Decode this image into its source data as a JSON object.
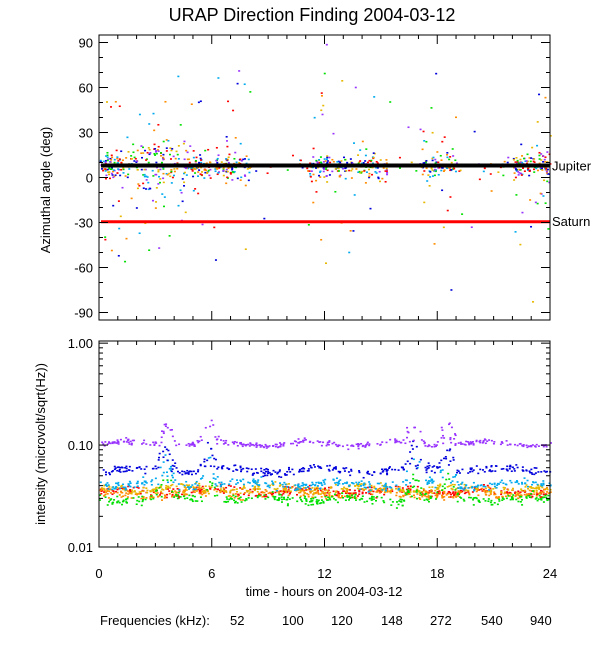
{
  "chart_data": [
    {
      "type": "scatter",
      "title": "URAP Direction Finding  2004-03-12",
      "ylabel": "Azimuthal angle (deg)",
      "xlim": [
        0,
        24
      ],
      "ylim": [
        -95,
        95
      ],
      "yticks": [
        90,
        60,
        30,
        0,
        -30,
        -60,
        -90
      ],
      "ytick_labels": [
        "90",
        "60",
        "30",
        "0",
        "-30",
        "-60",
        "-90"
      ],
      "reference_lines": [
        {
          "name": "Jupiter",
          "label": "Jupiter",
          "color": "#000000",
          "value": 8
        },
        {
          "name": "Saturn",
          "label": "Saturn",
          "color": "#ff0000",
          "value": -29.5
        }
      ],
      "active_bursts_hours": [
        [
          0,
          8
        ],
        [
          11,
          15.3
        ],
        [
          17,
          19
        ],
        [
          22,
          24
        ]
      ],
      "marker": "small dots, colored by frequency"
    },
    {
      "type": "scatter",
      "ylabel": "intensity (microvolt/sqrt(Hz))",
      "yscale": "log",
      "xlim": [
        0,
        24
      ],
      "ylim": [
        0.01,
        1.05
      ],
      "yticks": [
        1.0,
        0.1,
        0.01
      ],
      "ytick_labels": [
        "1.00",
        "0.10",
        "0.01"
      ],
      "xlabel": "time - hours on 2004-03-12",
      "xticks": [
        0,
        6,
        12,
        18,
        24
      ],
      "xtick_labels": [
        "0",
        "6",
        "12",
        "18",
        "24"
      ],
      "series": [
        {
          "name": "52",
          "color": "#ff0000",
          "base_level": 0.036
        },
        {
          "name": "100",
          "color": "#ff8c00",
          "base_level": 0.034
        },
        {
          "name": "120",
          "color": "#e6b800",
          "base_level": 0.038
        },
        {
          "name": "148",
          "color": "#00e000",
          "base_level": 0.03
        },
        {
          "name": "272",
          "color": "#00aaee",
          "base_level": 0.042
        },
        {
          "name": "540",
          "color": "#0000dd",
          "base_level": 0.058
        },
        {
          "name": "940",
          "color": "#9933ff",
          "base_level": 0.105
        }
      ],
      "bursts_hours": [
        3.5,
        5.8,
        16.7,
        18.5
      ]
    }
  ],
  "legend": {
    "label": "Frequencies (kHz):",
    "items": [
      {
        "text": "52",
        "color": "#ff0000"
      },
      {
        "text": "100",
        "color": "#ff8c00"
      },
      {
        "text": "120",
        "color": "#e6b800"
      },
      {
        "text": "148",
        "color": "#00e000"
      },
      {
        "text": "272",
        "color": "#00aaee"
      },
      {
        "text": "540",
        "color": "#0000dd"
      },
      {
        "text": "940",
        "color": "#9933ff"
      }
    ]
  }
}
